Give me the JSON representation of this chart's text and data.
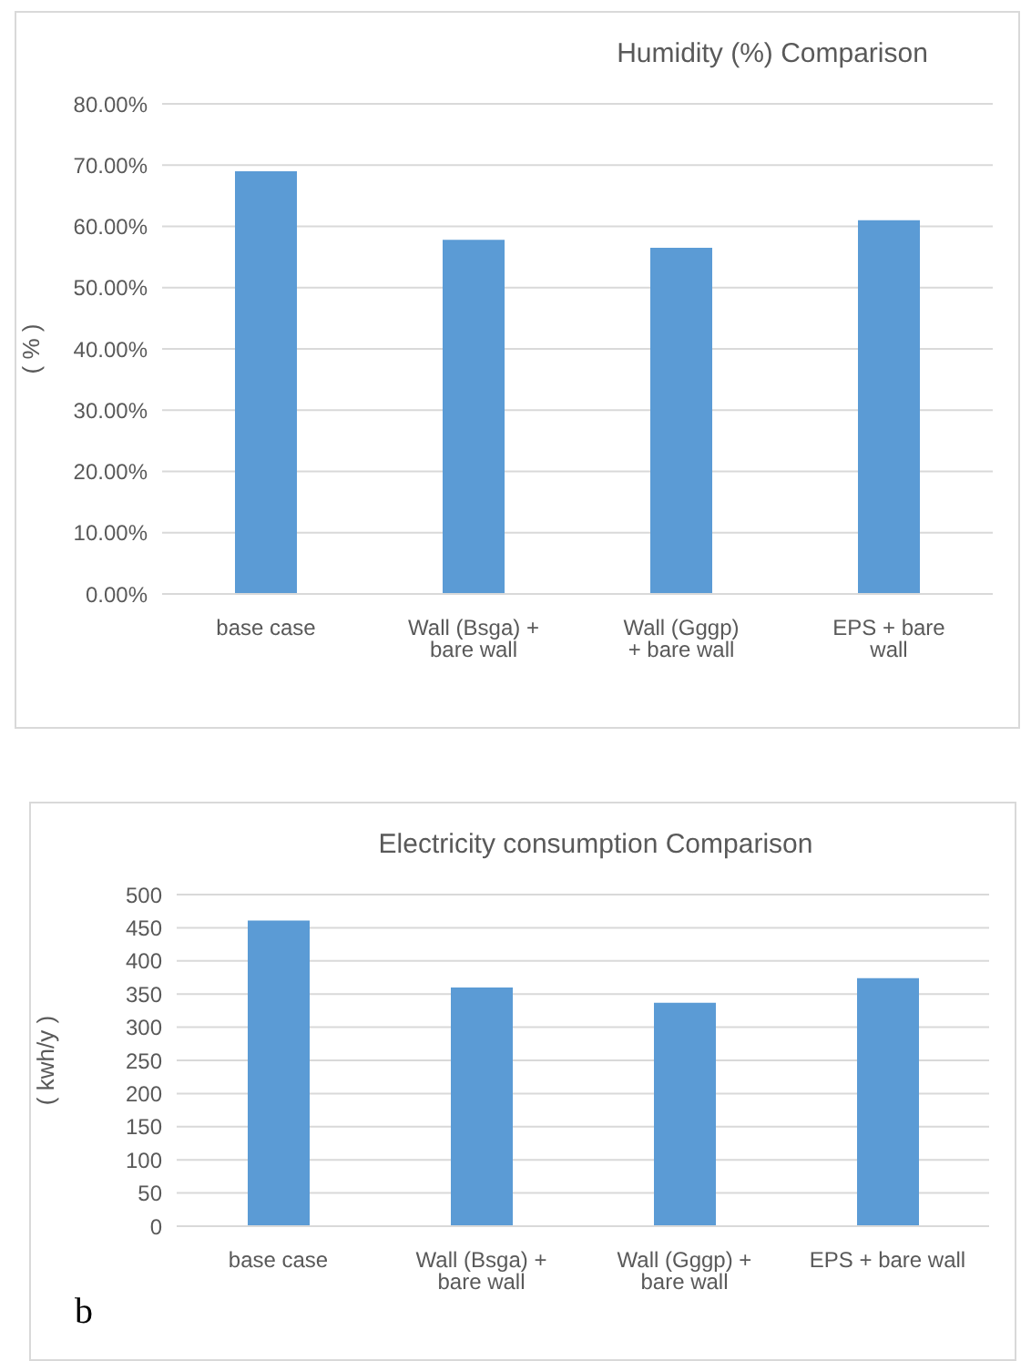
{
  "chart_data": [
    {
      "type": "bar",
      "title": "Humidity (%) Comparison",
      "ylabel": "( % )",
      "categories": [
        "base case",
        "Wall (Bsga) + bare wall",
        "Wall (Gggp) + bare wall",
        "EPS + bare wall"
      ],
      "values": [
        69,
        57.8,
        56.5,
        61
      ],
      "color": "#5b9bd5",
      "ylim": [
        0,
        80
      ],
      "yticks": [
        {
          "value": 0,
          "label": "0.00%"
        },
        {
          "value": 10,
          "label": "10.00%"
        },
        {
          "value": 20,
          "label": "20.00%"
        },
        {
          "value": 30,
          "label": "30.00%"
        },
        {
          "value": 40,
          "label": "40.00%"
        },
        {
          "value": 50,
          "label": "50.00%"
        },
        {
          "value": 60,
          "label": "60.00%"
        },
        {
          "value": 70,
          "label": "70.00%"
        },
        {
          "value": 80,
          "label": "80.00%"
        }
      ],
      "grid": "y",
      "legend": false
    },
    {
      "type": "bar",
      "title": "Electricity consumption Comparison",
      "ylabel": "( kwh/y )",
      "categories": [
        "base case",
        "Wall (Bsga) + bare wall",
        "Wall (Gggp) + bare wall",
        "EPS + bare wall"
      ],
      "values": [
        461,
        360,
        337,
        374
      ],
      "color": "#5b9bd5",
      "ylim": [
        0,
        500
      ],
      "yticks": [
        0,
        50,
        100,
        150,
        200,
        250,
        300,
        350,
        400,
        450,
        500
      ],
      "grid": "y",
      "legend": false,
      "annotations": [
        "b"
      ]
    }
  ]
}
